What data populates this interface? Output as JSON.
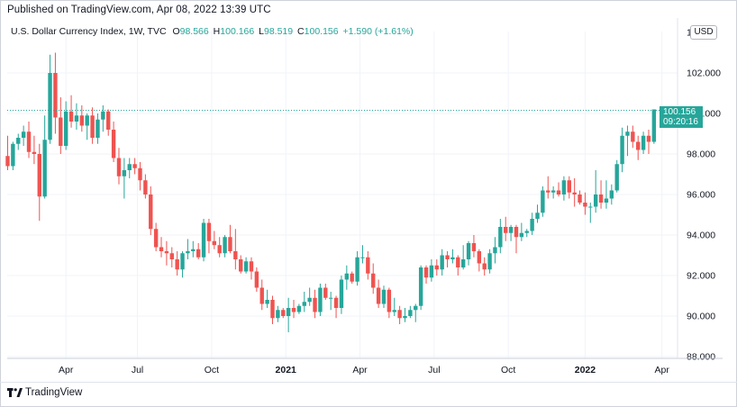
{
  "header": {
    "published": "Published on TradingView.com, Apr 08, 2022 13:39 UTC"
  },
  "legend": {
    "symbol": "U.S. Dollar Currency Index, 1W, TVC",
    "o_label": "O",
    "o_value": "98.566",
    "h_label": "H",
    "h_value": "100.166",
    "l_label": "L",
    "l_value": "98.519",
    "c_label": "C",
    "c_value": "100.156",
    "change": "+1.590 (+1.61%)"
  },
  "currency_badge": "USD",
  "last_price": {
    "value": "100.156",
    "countdown": "09:20:16"
  },
  "brand": {
    "name": "TradingView"
  },
  "colors": {
    "up": "#26a69a",
    "down": "#ef5350",
    "axis_text": "#131722",
    "grid": "#f0f3fa"
  },
  "chart_data": {
    "type": "candlestick",
    "ylim": [
      88,
      104
    ],
    "yticks": [
      "88.000",
      "90.000",
      "92.000",
      "94.000",
      "96.000",
      "98.000",
      "100.000",
      "102.000"
    ],
    "xticks": [
      "Apr",
      "Jul",
      "Oct",
      "2021",
      "Apr",
      "Jul",
      "Oct",
      "2022",
      "Apr"
    ],
    "last_close": 100.156,
    "candles": [
      [
        97.9,
        98.9,
        97.2,
        97.4
      ],
      [
        97.4,
        98.6,
        97.2,
        98.5
      ],
      [
        98.5,
        99.0,
        98.2,
        98.8
      ],
      [
        98.8,
        99.4,
        98.4,
        99.1
      ],
      [
        99.1,
        99.6,
        97.8,
        98.1
      ],
      [
        98.1,
        98.9,
        97.5,
        98.0
      ],
      [
        98.0,
        98.5,
        94.7,
        95.9
      ],
      [
        95.9,
        99.9,
        95.8,
        98.7
      ],
      [
        98.7,
        102.9,
        98.5,
        102.0
      ],
      [
        102.0,
        103.0,
        99.0,
        99.8
      ],
      [
        99.8,
        100.8,
        98.0,
        98.4
      ],
      [
        98.4,
        100.6,
        98.2,
        100.1
      ],
      [
        100.1,
        100.9,
        99.3,
        99.6
      ],
      [
        99.6,
        100.5,
        99.2,
        99.9
      ],
      [
        99.9,
        100.4,
        99.1,
        99.4
      ],
      [
        99.4,
        100.0,
        98.7,
        99.9
      ],
      [
        99.9,
        100.3,
        98.5,
        98.8
      ],
      [
        98.8,
        100.0,
        98.5,
        99.7
      ],
      [
        99.7,
        100.4,
        99.1,
        100.1
      ],
      [
        100.1,
        100.2,
        98.9,
        99.2
      ],
      [
        99.2,
        99.6,
        97.6,
        97.8
      ],
      [
        97.8,
        98.3,
        96.5,
        96.9
      ],
      [
        96.9,
        97.8,
        95.8,
        97.2
      ],
      [
        97.2,
        97.8,
        96.8,
        97.5
      ],
      [
        97.5,
        97.8,
        97.0,
        97.3
      ],
      [
        97.3,
        97.6,
        96.2,
        96.7
      ],
      [
        96.7,
        97.0,
        95.8,
        96.0
      ],
      [
        96.0,
        96.4,
        94.0,
        94.3
      ],
      [
        94.3,
        94.6,
        93.2,
        93.4
      ],
      [
        93.4,
        93.9,
        92.9,
        93.2
      ],
      [
        93.2,
        93.7,
        92.5,
        93.1
      ],
      [
        93.1,
        93.4,
        92.4,
        92.8
      ],
      [
        92.8,
        93.2,
        92.0,
        92.3
      ],
      [
        92.3,
        93.2,
        91.9,
        93.1
      ],
      [
        93.1,
        93.8,
        92.8,
        93.2
      ],
      [
        93.2,
        93.7,
        92.9,
        93.3
      ],
      [
        93.3,
        93.6,
        92.8,
        92.9
      ],
      [
        92.9,
        94.8,
        92.7,
        94.6
      ],
      [
        94.6,
        94.8,
        93.1,
        93.7
      ],
      [
        93.7,
        94.2,
        93.3,
        93.5
      ],
      [
        93.5,
        93.9,
        92.9,
        93.1
      ],
      [
        93.1,
        94.0,
        92.9,
        93.9
      ],
      [
        93.9,
        94.5,
        93.1,
        93.2
      ],
      [
        93.2,
        94.3,
        92.3,
        92.8
      ],
      [
        92.8,
        93.0,
        92.1,
        92.2
      ],
      [
        92.2,
        92.9,
        92.1,
        92.7
      ],
      [
        92.7,
        92.9,
        91.8,
        92.2
      ],
      [
        92.2,
        92.4,
        91.2,
        91.4
      ],
      [
        91.4,
        91.8,
        90.3,
        90.6
      ],
      [
        90.6,
        91.3,
        90.4,
        90.8
      ],
      [
        90.8,
        91.0,
        89.6,
        89.9
      ],
      [
        89.9,
        90.5,
        89.7,
        90.3
      ],
      [
        90.3,
        90.4,
        89.9,
        90.0
      ],
      [
        90.0,
        90.9,
        89.2,
        90.4
      ],
      [
        90.4,
        90.8,
        89.9,
        90.2
      ],
      [
        90.2,
        90.6,
        90.1,
        90.5
      ],
      [
        90.5,
        91.2,
        90.2,
        90.7
      ],
      [
        90.7,
        91.4,
        90.5,
        90.9
      ],
      [
        90.9,
        91.3,
        89.9,
        90.2
      ],
      [
        90.2,
        91.6,
        90.0,
        91.4
      ],
      [
        91.4,
        91.6,
        90.8,
        90.9
      ],
      [
        90.9,
        91.2,
        90.3,
        90.9
      ],
      [
        90.9,
        91.0,
        89.9,
        90.4
      ],
      [
        90.4,
        92.0,
        90.1,
        91.8
      ],
      [
        91.8,
        92.5,
        91.3,
        92.1
      ],
      [
        92.1,
        92.2,
        91.6,
        91.7
      ],
      [
        91.7,
        93.2,
        91.5,
        92.9
      ],
      [
        92.9,
        93.5,
        92.6,
        92.9
      ],
      [
        92.9,
        93.2,
        91.8,
        92.1
      ],
      [
        92.1,
        92.6,
        91.1,
        91.4
      ],
      [
        91.4,
        91.8,
        90.4,
        90.6
      ],
      [
        90.6,
        91.5,
        90.4,
        91.3
      ],
      [
        91.3,
        91.4,
        89.9,
        90.2
      ],
      [
        90.2,
        90.9,
        90.0,
        90.3
      ],
      [
        90.3,
        90.5,
        89.6,
        89.9
      ],
      [
        89.9,
        90.4,
        89.7,
        90.0
      ],
      [
        90.0,
        90.5,
        89.9,
        90.3
      ],
      [
        90.3,
        90.6,
        89.7,
        90.5
      ],
      [
        90.5,
        92.5,
        90.3,
        92.4
      ],
      [
        92.4,
        92.5,
        91.6,
        91.9
      ],
      [
        91.9,
        92.8,
        91.7,
        92.5
      ],
      [
        92.5,
        92.8,
        92.0,
        92.3
      ],
      [
        92.3,
        93.3,
        92.0,
        93.0
      ],
      [
        93.0,
        93.2,
        92.4,
        92.8
      ],
      [
        92.8,
        93.3,
        92.6,
        92.9
      ],
      [
        92.9,
        93.0,
        92.0,
        92.4
      ],
      [
        92.4,
        93.5,
        92.3,
        92.8
      ],
      [
        92.8,
        93.7,
        92.5,
        93.6
      ],
      [
        93.6,
        94.0,
        92.9,
        93.2
      ],
      [
        93.2,
        93.3,
        92.2,
        92.6
      ],
      [
        92.6,
        92.9,
        92.0,
        92.3
      ],
      [
        92.3,
        93.3,
        92.1,
        93.1
      ],
      [
        93.1,
        93.9,
        92.6,
        93.4
      ],
      [
        93.4,
        94.8,
        93.1,
        94.4
      ],
      [
        94.4,
        94.9,
        93.7,
        94.1
      ],
      [
        94.1,
        94.5,
        93.7,
        94.4
      ],
      [
        94.4,
        94.5,
        93.1,
        93.9
      ],
      [
        93.9,
        94.6,
        93.7,
        94.1
      ],
      [
        94.1,
        94.3,
        93.9,
        94.2
      ],
      [
        94.2,
        95.1,
        94.0,
        94.8
      ],
      [
        94.8,
        95.5,
        94.6,
        95.1
      ],
      [
        95.1,
        96.4,
        94.9,
        96.2
      ],
      [
        96.2,
        96.9,
        95.8,
        96.1
      ],
      [
        96.1,
        96.4,
        95.8,
        96.2
      ],
      [
        96.2,
        96.6,
        95.9,
        96.0
      ],
      [
        96.0,
        96.9,
        95.7,
        96.7
      ],
      [
        96.7,
        96.9,
        95.8,
        96.1
      ],
      [
        96.1,
        96.8,
        95.4,
        96.0
      ],
      [
        96.0,
        96.2,
        95.5,
        95.6
      ],
      [
        95.6,
        96.1,
        95.0,
        95.4
      ],
      [
        95.4,
        95.6,
        94.6,
        95.4
      ],
      [
        95.4,
        97.2,
        95.1,
        96.0
      ],
      [
        96.0,
        96.7,
        95.3,
        95.6
      ],
      [
        95.6,
        96.7,
        95.3,
        95.8
      ],
      [
        95.8,
        96.5,
        95.5,
        96.2
      ],
      [
        96.2,
        97.7,
        96.1,
        97.5
      ],
      [
        97.5,
        99.3,
        97.1,
        98.9
      ],
      [
        98.9,
        99.4,
        97.9,
        99.1
      ],
      [
        99.1,
        99.4,
        98.3,
        98.6
      ],
      [
        98.6,
        98.9,
        97.7,
        98.2
      ],
      [
        98.2,
        99.1,
        98.0,
        98.9
      ],
      [
        98.9,
        99.2,
        98.0,
        98.6
      ],
      [
        98.6,
        100.2,
        98.5,
        100.2
      ]
    ]
  }
}
